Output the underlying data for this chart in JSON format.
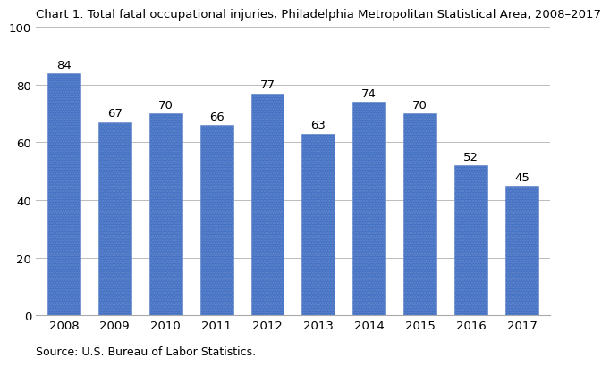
{
  "title": "Chart 1. Total fatal occupational injuries, Philadelphia Metropolitan Statistical Area, 2008–2017",
  "years": [
    "2008",
    "2009",
    "2010",
    "2011",
    "2012",
    "2013",
    "2014",
    "2015",
    "2016",
    "2017"
  ],
  "values": [
    84,
    67,
    70,
    66,
    77,
    63,
    74,
    70,
    52,
    45
  ],
  "bar_color": "#4472C4",
  "ylim": [
    0,
    100
  ],
  "yticks": [
    0,
    20,
    40,
    60,
    80,
    100
  ],
  "source_text": "Source: U.S. Bureau of Labor Statistics.",
  "title_fontsize": 9.5,
  "tick_fontsize": 9.5,
  "label_fontsize": 9.5,
  "source_fontsize": 9.0,
  "background_color": "#ffffff",
  "bar_width": 0.65
}
